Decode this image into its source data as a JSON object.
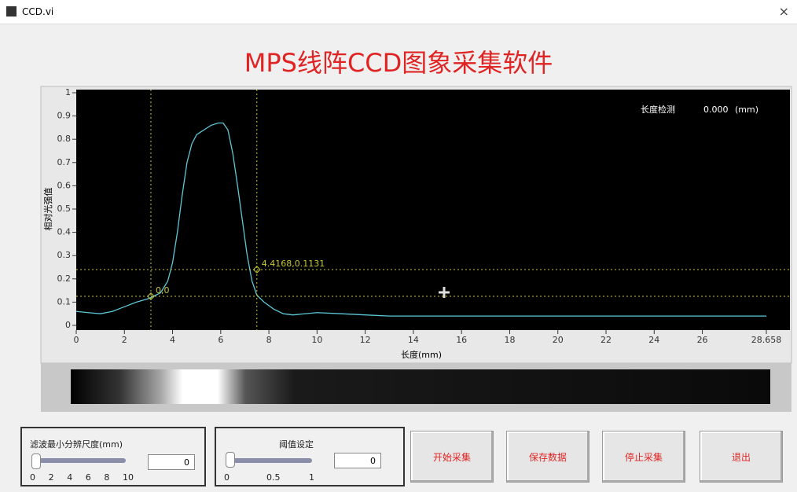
{
  "window": {
    "title": "CCD.vi",
    "close": "×"
  },
  "header": {
    "title": "MPS线阵CCD图象采集软件"
  },
  "chart_data": {
    "type": "line",
    "xlabel": "长度(mm)",
    "ylabel": "相对光强值",
    "xlim": [
      0,
      28.658
    ],
    "xticks": [
      0,
      2,
      4,
      6,
      8,
      10,
      12,
      14,
      16,
      18,
      20,
      22,
      24,
      26,
      28.658
    ],
    "ylim": [
      0,
      1
    ],
    "yticks": [
      0,
      0.1,
      0.2,
      0.3,
      0.4,
      0.5,
      0.6,
      0.7,
      0.8,
      0.9,
      1
    ],
    "x": [
      0,
      0.5,
      1,
      1.5,
      2,
      2.5,
      3,
      3.5,
      3.8,
      4,
      4.2,
      4.4,
      4.6,
      4.8,
      5,
      5.3,
      5.6,
      5.9,
      6.1,
      6.3,
      6.5,
      6.7,
      6.9,
      7.1,
      7.3,
      7.5,
      7.8,
      8.2,
      8.6,
      9,
      10,
      11,
      12,
      13,
      14,
      16,
      18,
      20,
      22,
      24,
      26,
      28.658
    ],
    "series": [
      {
        "color": "#5cc8d6",
        "values": [
          0.06,
          0.055,
          0.05,
          0.06,
          0.08,
          0.1,
          0.115,
          0.14,
          0.19,
          0.27,
          0.4,
          0.56,
          0.7,
          0.78,
          0.82,
          0.84,
          0.86,
          0.87,
          0.87,
          0.84,
          0.74,
          0.6,
          0.45,
          0.3,
          0.19,
          0.13,
          0.1,
          0.07,
          0.05,
          0.045,
          0.055,
          0.05,
          0.045,
          0.04,
          0.04,
          0.04,
          0.04,
          0.04,
          0.04,
          0.04,
          0.04,
          0.04
        ]
      }
    ],
    "cursors": [
      {
        "x": 3.1,
        "y": 0.125,
        "label": "0,0",
        "color": "#c8c832"
      },
      {
        "x": 7.5,
        "y": 0.24,
        "label": "4.4168,0.1131",
        "color": "#c8c832"
      }
    ],
    "annotations": [
      "长度检测",
      "0.000",
      "(mm)"
    ]
  },
  "controls": {
    "filter": {
      "label": "滤波最小分辨尺度(mm)",
      "ticks": [
        0,
        2,
        4,
        6,
        8,
        10
      ],
      "value": 0
    },
    "threshold": {
      "label": "阈值设定",
      "ticks": [
        0,
        0.5,
        1
      ],
      "value": 0
    },
    "buttons": [
      "开始采集",
      "保存数据",
      "停止采集",
      "退出"
    ]
  }
}
